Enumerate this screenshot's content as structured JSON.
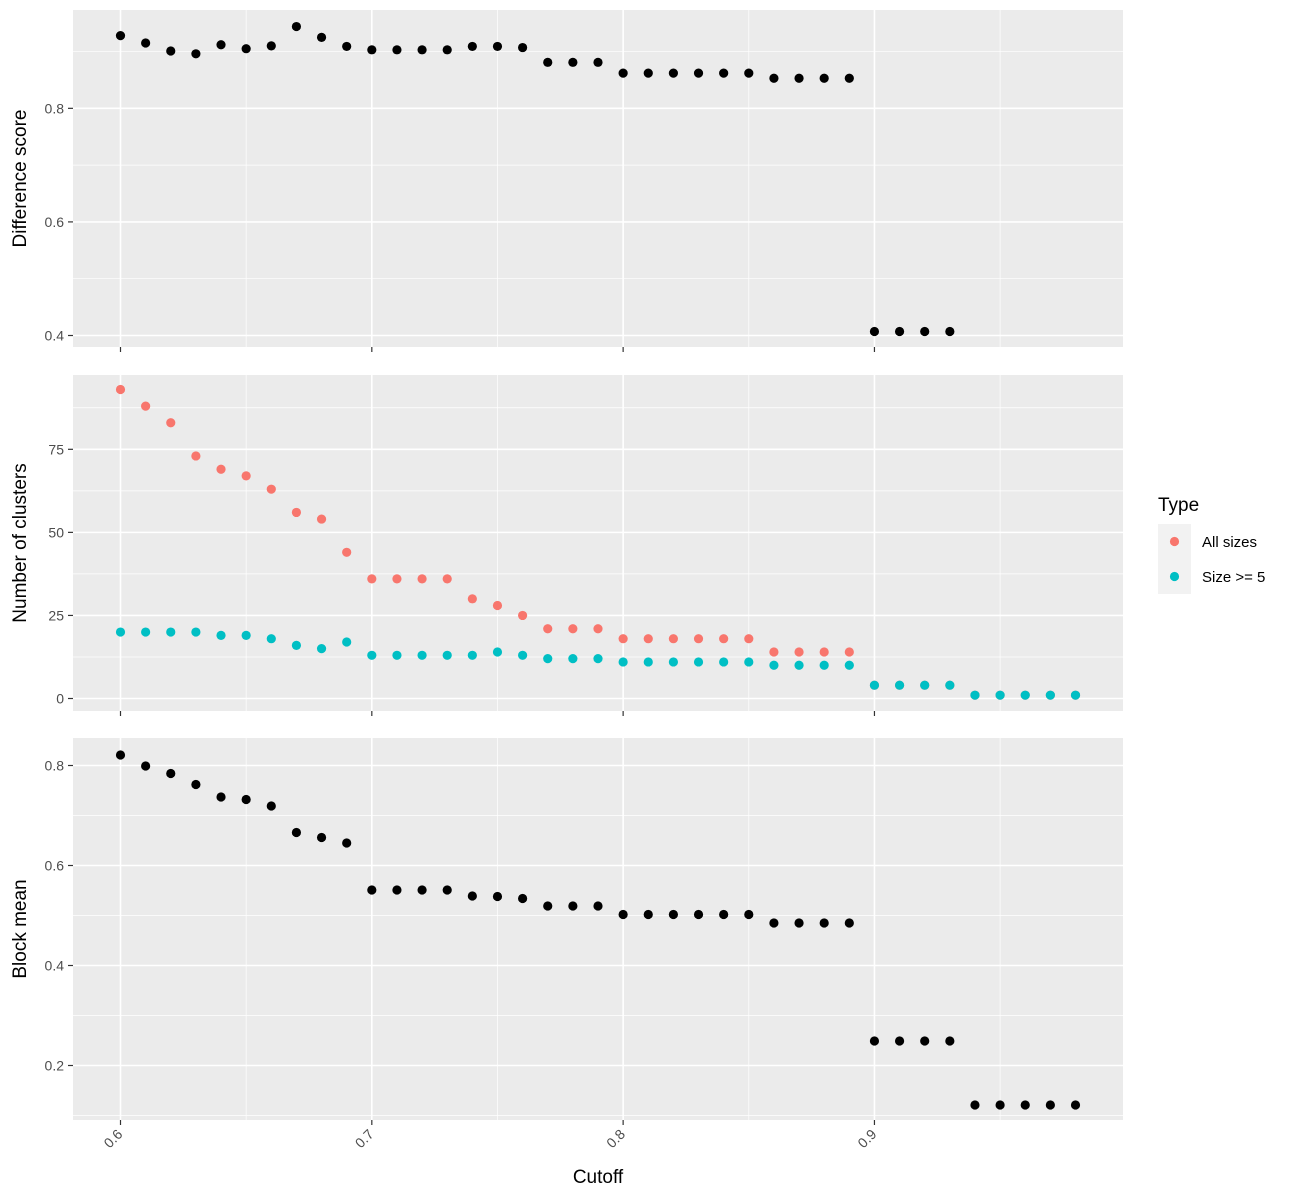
{
  "chart_data": [
    {
      "type": "scatter",
      "title": "",
      "xlabel": "",
      "ylabel": "Difference score",
      "xlim": [
        0.6,
        0.98
      ],
      "ylim": [
        0.4,
        0.93
      ],
      "x_ticks": [
        "0.6",
        "0.7",
        "0.8",
        "0.9"
      ],
      "y_ticks": [
        "0.4",
        "0.6",
        "0.8"
      ],
      "grid": true,
      "series": [
        {
          "color": "#000000",
          "points": [
            [
              0.6,
              0.928
            ],
            [
              0.61,
              0.915
            ],
            [
              0.62,
              0.901
            ],
            [
              0.63,
              0.896
            ],
            [
              0.64,
              0.912
            ],
            [
              0.65,
              0.905
            ],
            [
              0.66,
              0.91
            ],
            [
              0.67,
              0.944
            ],
            [
              0.68,
              0.925
            ],
            [
              0.69,
              0.909
            ],
            [
              0.7,
              0.903
            ],
            [
              0.71,
              0.903
            ],
            [
              0.72,
              0.903
            ],
            [
              0.73,
              0.903
            ],
            [
              0.74,
              0.909
            ],
            [
              0.75,
              0.909
            ],
            [
              0.76,
              0.907
            ],
            [
              0.77,
              0.881
            ],
            [
              0.78,
              0.881
            ],
            [
              0.79,
              0.881
            ],
            [
              0.8,
              0.862
            ],
            [
              0.81,
              0.862
            ],
            [
              0.82,
              0.862
            ],
            [
              0.83,
              0.862
            ],
            [
              0.84,
              0.862
            ],
            [
              0.85,
              0.862
            ],
            [
              0.86,
              0.853
            ],
            [
              0.87,
              0.853
            ],
            [
              0.88,
              0.853
            ],
            [
              0.89,
              0.853
            ],
            [
              0.9,
              0.407
            ],
            [
              0.91,
              0.407
            ],
            [
              0.92,
              0.407
            ],
            [
              0.93,
              0.407
            ]
          ]
        }
      ]
    },
    {
      "type": "scatter",
      "title": "",
      "xlabel": "",
      "ylabel": "Number of clusters",
      "xlim": [
        0.6,
        0.98
      ],
      "ylim": [
        0,
        93
      ],
      "x_ticks": [
        "0.6",
        "0.7",
        "0.8",
        "0.9"
      ],
      "y_ticks": [
        "0",
        "25",
        "50",
        "75"
      ],
      "grid": true,
      "legend": {
        "title": "Type",
        "position": "right"
      },
      "series": [
        {
          "name": "All sizes",
          "color": "#F8766D",
          "points": [
            [
              0.6,
              93
            ],
            [
              0.61,
              88
            ],
            [
              0.62,
              83
            ],
            [
              0.63,
              73
            ],
            [
              0.64,
              69
            ],
            [
              0.65,
              67
            ],
            [
              0.66,
              63
            ],
            [
              0.67,
              56
            ],
            [
              0.68,
              54
            ],
            [
              0.69,
              44
            ],
            [
              0.7,
              36
            ],
            [
              0.71,
              36
            ],
            [
              0.72,
              36
            ],
            [
              0.73,
              36
            ],
            [
              0.74,
              30
            ],
            [
              0.75,
              28
            ],
            [
              0.76,
              25
            ],
            [
              0.77,
              21
            ],
            [
              0.78,
              21
            ],
            [
              0.79,
              21
            ],
            [
              0.8,
              18
            ],
            [
              0.81,
              18
            ],
            [
              0.82,
              18
            ],
            [
              0.83,
              18
            ],
            [
              0.84,
              18
            ],
            [
              0.85,
              18
            ],
            [
              0.86,
              14
            ],
            [
              0.87,
              14
            ],
            [
              0.88,
              14
            ],
            [
              0.89,
              14
            ],
            [
              0.9,
              4
            ],
            [
              0.91,
              4
            ],
            [
              0.92,
              4
            ],
            [
              0.93,
              4
            ],
            [
              0.94,
              1
            ],
            [
              0.95,
              1
            ],
            [
              0.96,
              1
            ],
            [
              0.97,
              1
            ],
            [
              0.98,
              1
            ]
          ]
        },
        {
          "name": "Size >= 5",
          "color": "#00BFC4",
          "points": [
            [
              0.6,
              20
            ],
            [
              0.61,
              20
            ],
            [
              0.62,
              20
            ],
            [
              0.63,
              20
            ],
            [
              0.64,
              19
            ],
            [
              0.65,
              19
            ],
            [
              0.66,
              18
            ],
            [
              0.67,
              16
            ],
            [
              0.68,
              15
            ],
            [
              0.69,
              17
            ],
            [
              0.7,
              13
            ],
            [
              0.71,
              13
            ],
            [
              0.72,
              13
            ],
            [
              0.73,
              13
            ],
            [
              0.74,
              13
            ],
            [
              0.75,
              14
            ],
            [
              0.76,
              13
            ],
            [
              0.77,
              12
            ],
            [
              0.78,
              12
            ],
            [
              0.79,
              12
            ],
            [
              0.8,
              11
            ],
            [
              0.81,
              11
            ],
            [
              0.82,
              11
            ],
            [
              0.83,
              11
            ],
            [
              0.84,
              11
            ],
            [
              0.85,
              11
            ],
            [
              0.86,
              10
            ],
            [
              0.87,
              10
            ],
            [
              0.88,
              10
            ],
            [
              0.89,
              10
            ],
            [
              0.9,
              4
            ],
            [
              0.91,
              4
            ],
            [
              0.92,
              4
            ],
            [
              0.93,
              4
            ],
            [
              0.94,
              1
            ],
            [
              0.95,
              1
            ],
            [
              0.96,
              1
            ],
            [
              0.97,
              1
            ],
            [
              0.98,
              1
            ]
          ]
        }
      ]
    },
    {
      "type": "scatter",
      "title": "",
      "xlabel": "Cutoff",
      "ylabel": "Block mean",
      "xlim": [
        0.6,
        0.98
      ],
      "ylim": [
        0.12,
        0.82
      ],
      "x_ticks": [
        "0.6",
        "0.7",
        "0.8",
        "0.9"
      ],
      "y_ticks": [
        "0.2",
        "0.4",
        "0.6",
        "0.8"
      ],
      "grid": true,
      "series": [
        {
          "color": "#000000",
          "points": [
            [
              0.6,
              0.821
            ],
            [
              0.61,
              0.799
            ],
            [
              0.62,
              0.784
            ],
            [
              0.63,
              0.762
            ],
            [
              0.64,
              0.737
            ],
            [
              0.65,
              0.732
            ],
            [
              0.66,
              0.719
            ],
            [
              0.67,
              0.666
            ],
            [
              0.68,
              0.656
            ],
            [
              0.69,
              0.645
            ],
            [
              0.7,
              0.551
            ],
            [
              0.71,
              0.551
            ],
            [
              0.72,
              0.551
            ],
            [
              0.73,
              0.551
            ],
            [
              0.74,
              0.539
            ],
            [
              0.75,
              0.538
            ],
            [
              0.76,
              0.534
            ],
            [
              0.77,
              0.519
            ],
            [
              0.78,
              0.519
            ],
            [
              0.79,
              0.519
            ],
            [
              0.8,
              0.502
            ],
            [
              0.81,
              0.502
            ],
            [
              0.82,
              0.502
            ],
            [
              0.83,
              0.502
            ],
            [
              0.84,
              0.502
            ],
            [
              0.85,
              0.502
            ],
            [
              0.86,
              0.485
            ],
            [
              0.87,
              0.485
            ],
            [
              0.88,
              0.485
            ],
            [
              0.89,
              0.485
            ],
            [
              0.9,
              0.249
            ],
            [
              0.91,
              0.249
            ],
            [
              0.92,
              0.249
            ],
            [
              0.93,
              0.249
            ],
            [
              0.94,
              0.121
            ],
            [
              0.95,
              0.121
            ],
            [
              0.96,
              0.121
            ],
            [
              0.97,
              0.121
            ],
            [
              0.98,
              0.121
            ]
          ]
        }
      ]
    }
  ]
}
